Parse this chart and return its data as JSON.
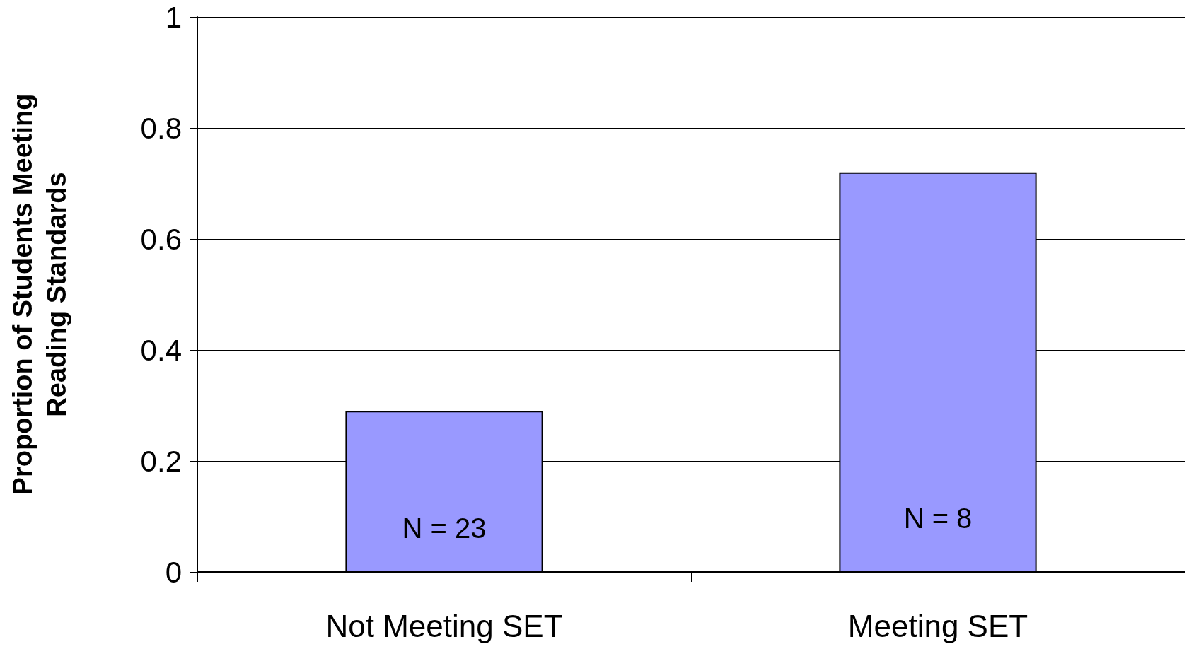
{
  "chart_data": {
    "type": "bar",
    "ylabel": "Proportion of Students Meeting\nReading Standards",
    "categories": [
      "Not Meeting SET",
      "Meeting SET"
    ],
    "values": [
      0.29,
      0.72
    ],
    "color": "#9999ff",
    "ylim": [
      0,
      1
    ],
    "yticks": [
      0,
      0.2,
      0.4,
      0.6,
      0.8,
      1
    ],
    "grid": "y",
    "annotations": [
      "N = 23",
      "N = 8"
    ]
  }
}
